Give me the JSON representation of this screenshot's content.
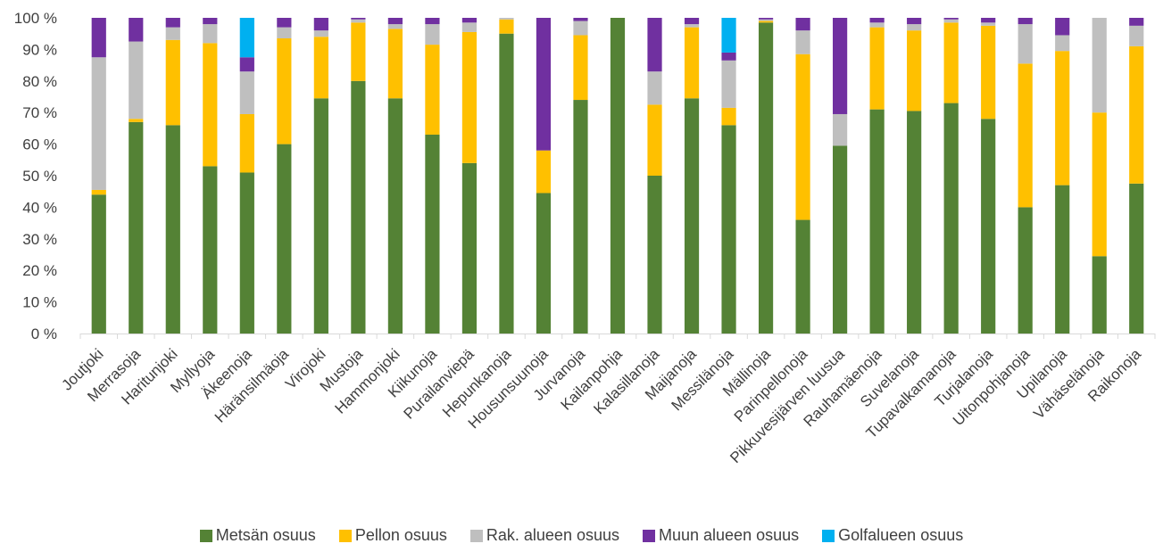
{
  "chart_data": {
    "type": "bar",
    "stacked": true,
    "title": "",
    "xlabel": "",
    "ylabel": "",
    "ylim": [
      0,
      100
    ],
    "y_ticks": [
      "0 %",
      "10 %",
      "20 %",
      "30 %",
      "40 %",
      "50 %",
      "60 %",
      "70 %",
      "80 %",
      "90 %",
      "100 %"
    ],
    "grid": false,
    "legend_position": "bottom",
    "categories": [
      "Joutjoki",
      "Merrasoja",
      "Haritunjoki",
      "Myllyoja",
      "Äkeenoja",
      "Häränsilmäoja",
      "Virojoki",
      "Mustoja",
      "Hammonjoki",
      "Kiikunoja",
      "Purailanviepä",
      "Hepunkanoja",
      "Housunsuunoja",
      "Jurvanoja",
      "Kailanpohja",
      "Kalasillanoja",
      "Maijanoja",
      "Messilänoja",
      "Mällinoja",
      "Parinpellonoja",
      "Pikkuvesijärven luusua",
      "Rauhamäenoja",
      "Suvelanoja",
      "Tupavalkamanoja",
      "Turjalanoja",
      "Uitonpohjanoja",
      "Upilanoja",
      "Vähäselänoja",
      "Raikonoja"
    ],
    "series": [
      {
        "name": "Metsän osuus",
        "color": "#548235",
        "values": [
          44,
          67,
          66,
          53,
          51,
          60,
          74.5,
          80,
          74.5,
          63,
          54,
          95,
          44.5,
          74,
          100,
          50,
          74.5,
          66,
          98.5,
          36,
          59.5,
          71,
          70.5,
          73,
          68,
          40,
          47,
          24.5,
          47.5
        ]
      },
      {
        "name": "Pellon osuus",
        "color": "#FFC000",
        "values": [
          1.5,
          1,
          27,
          39,
          18.5,
          33.5,
          19.5,
          18.5,
          22,
          28.5,
          41.5,
          4.5,
          13.5,
          20.5,
          0,
          22.5,
          22.5,
          5.5,
          0.5,
          52.5,
          0,
          26,
          25.5,
          25.5,
          29.5,
          45.5,
          42.5,
          45.5,
          43.5
        ]
      },
      {
        "name": "Rak. alueen osuus",
        "color": "#BFBFBF",
        "values": [
          42,
          24.5,
          4,
          6,
          13.5,
          3.5,
          2,
          1,
          1.5,
          6.5,
          3,
          0.5,
          0,
          4.5,
          0,
          10.5,
          1,
          15,
          0.5,
          7.5,
          10,
          1.5,
          2,
          1,
          1,
          12.5,
          5,
          30,
          6.5
        ]
      },
      {
        "name": "Muun alueen osuus",
        "color": "#7030A0",
        "values": [
          12.5,
          7.5,
          3,
          2,
          4.5,
          3,
          4,
          0.5,
          2,
          2,
          1.5,
          0,
          42,
          1,
          0,
          17,
          2,
          2.5,
          0.5,
          4,
          30.5,
          1.5,
          2,
          0.5,
          1.5,
          2,
          5.5,
          0,
          2.5
        ]
      },
      {
        "name": "Golfalueen osuus",
        "color": "#00B0F0",
        "values": [
          0,
          0,
          0,
          0,
          12.5,
          0,
          0,
          0,
          0,
          0,
          0,
          0,
          0,
          0,
          0,
          0,
          0,
          11,
          0,
          0,
          0,
          0,
          0,
          0,
          0,
          0,
          0,
          0,
          0
        ]
      }
    ]
  }
}
